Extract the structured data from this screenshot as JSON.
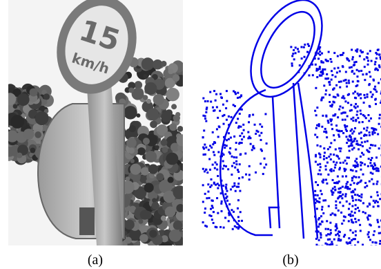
{
  "panels": [
    {
      "caption": "(a)",
      "sign_text": [
        "15",
        "km/h"
      ]
    },
    {
      "caption": "(b)"
    }
  ]
}
